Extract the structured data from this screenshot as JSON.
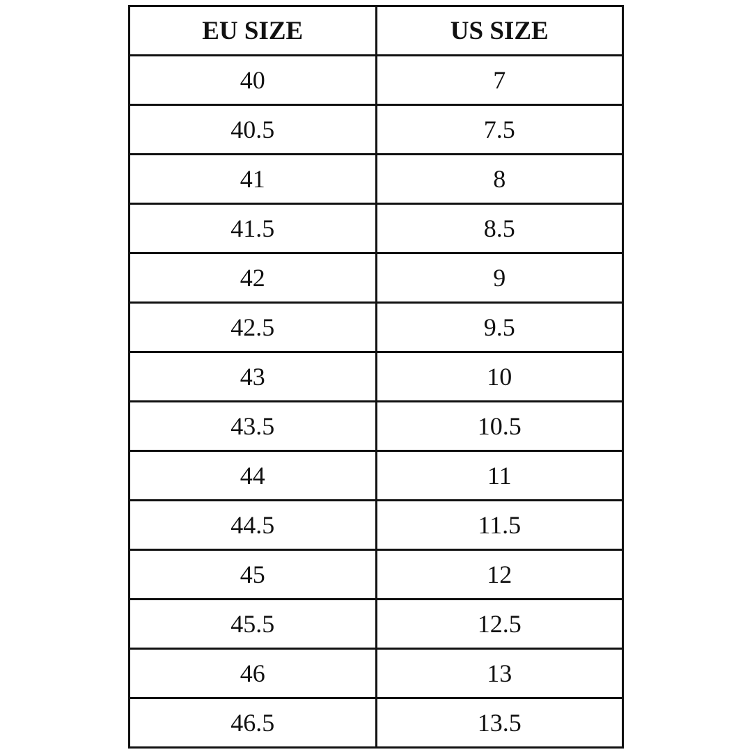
{
  "table": {
    "headers": [
      "EU SIZE",
      "US SIZE"
    ],
    "rows": [
      [
        "40",
        "7"
      ],
      [
        "40.5",
        "7.5"
      ],
      [
        "41",
        "8"
      ],
      [
        "41.5",
        "8.5"
      ],
      [
        "42",
        "9"
      ],
      [
        "42.5",
        "9.5"
      ],
      [
        "43",
        "10"
      ],
      [
        "43.5",
        "10.5"
      ],
      [
        "44",
        "11"
      ],
      [
        "44.5",
        "11.5"
      ],
      [
        "45",
        "12"
      ],
      [
        "45.5",
        "12.5"
      ],
      [
        "46",
        "13"
      ],
      [
        "46.5",
        "13.5"
      ]
    ]
  }
}
